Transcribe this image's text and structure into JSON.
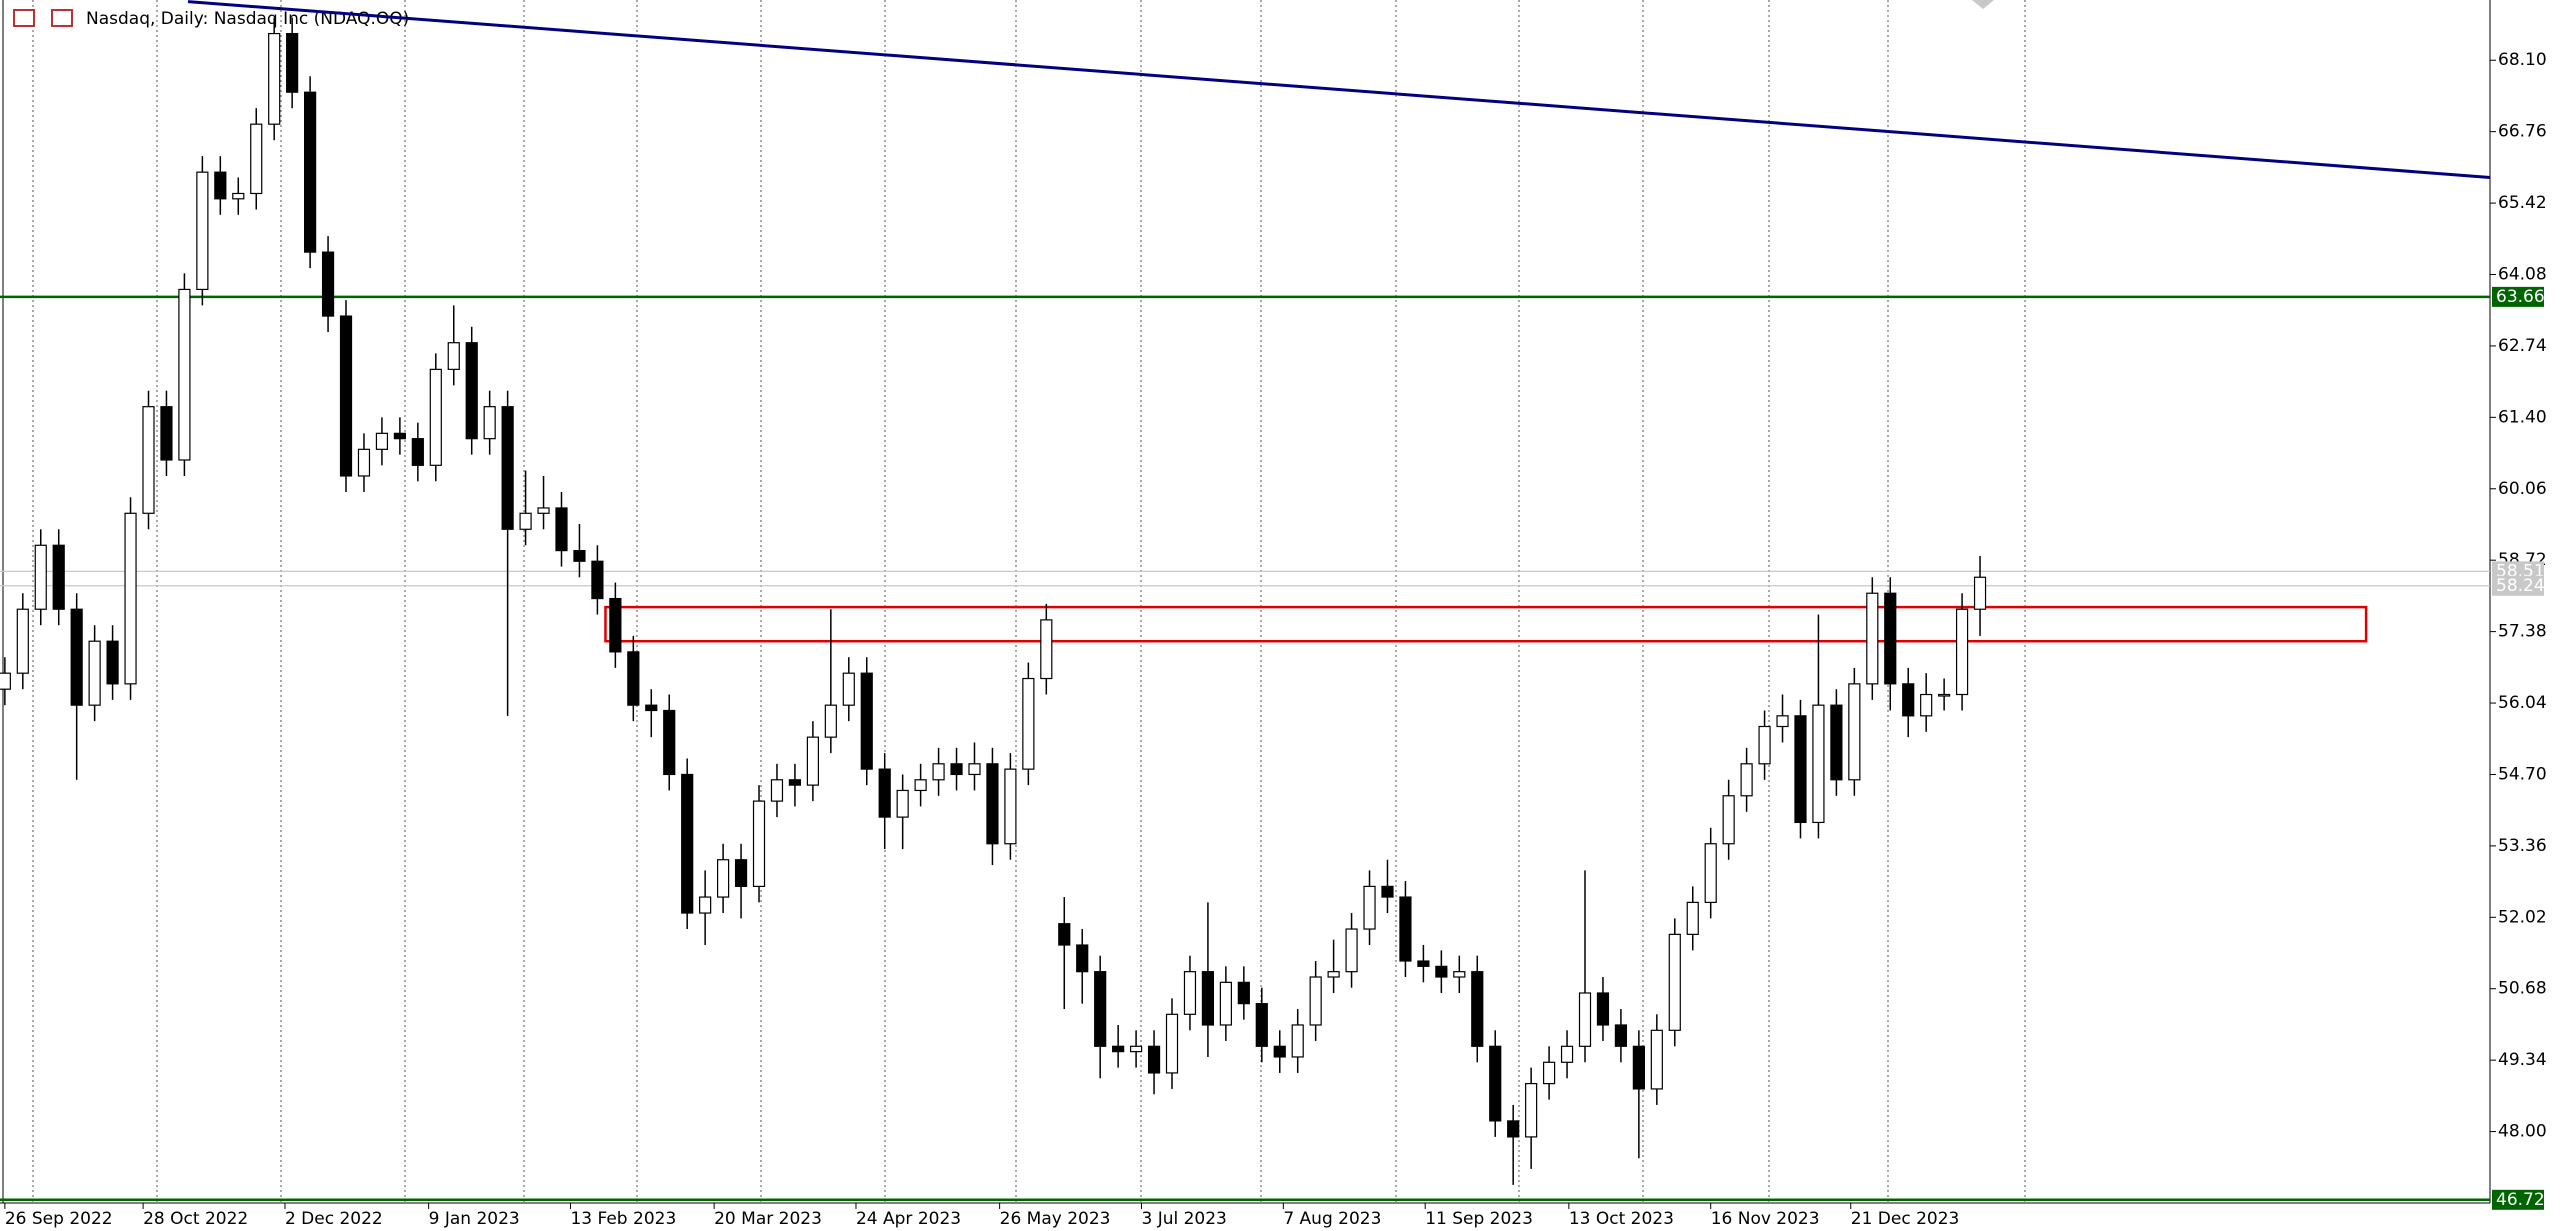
{
  "chart_data": {
    "type": "candlestick",
    "title": "Nasdaq, Daily:  Nasdaq Inc (NDAQ.OQ)",
    "series": [
      {
        "bull_color": "#ffffff",
        "bear_color": "#000000",
        "edge_color": "#000000",
        "open": [
          56.3,
          56.6,
          57.8,
          59.0,
          57.8,
          56.0,
          57.2,
          56.4,
          59.6,
          61.6,
          60.6,
          63.8,
          66.0,
          65.5,
          65.6,
          66.9,
          68.6,
          67.5,
          64.5,
          63.3,
          60.3,
          60.8,
          61.1,
          61.0,
          60.5,
          62.3,
          62.8,
          61.0,
          61.6,
          59.3,
          59.6,
          59.7,
          58.9,
          58.7,
          58.0,
          57.0,
          56.0,
          55.9,
          54.7,
          52.1,
          52.4,
          53.1,
          52.6,
          54.2,
          54.6,
          54.5,
          55.4,
          56.0,
          56.6,
          54.8,
          53.9,
          54.4,
          54.6,
          54.9,
          54.7,
          54.9,
          53.4,
          54.8,
          56.5,
          51.9,
          51.5,
          51.0,
          49.6,
          49.5,
          49.6,
          49.1,
          50.2,
          51.0,
          50.0,
          50.8,
          50.4,
          49.6,
          49.4,
          50.0,
          50.9,
          51.0,
          51.8,
          52.6,
          52.4,
          51.2,
          51.1,
          50.9,
          51.0,
          49.6,
          48.2,
          47.9,
          48.9,
          49.3,
          49.6,
          50.6,
          50.0,
          49.6,
          48.8,
          49.9,
          51.7,
          52.3,
          53.4,
          54.3,
          54.9,
          55.6,
          55.8,
          53.8,
          56.0,
          54.6,
          56.4,
          58.1,
          56.4,
          55.8,
          56.2,
          56.2,
          57.8
        ],
        "high": [
          56.9,
          58.1,
          59.3,
          59.3,
          58.1,
          57.5,
          57.5,
          59.9,
          61.9,
          61.9,
          64.1,
          66.3,
          66.3,
          65.9,
          67.2,
          68.9,
          68.9,
          67.8,
          64.8,
          63.6,
          61.1,
          61.4,
          61.4,
          61.3,
          62.6,
          63.5,
          63.1,
          61.9,
          61.9,
          60.4,
          60.3,
          60.0,
          59.4,
          59.0,
          58.3,
          57.3,
          56.3,
          56.2,
          55.0,
          52.9,
          53.4,
          53.4,
          54.5,
          54.9,
          54.9,
          55.7,
          57.8,
          56.9,
          56.9,
          55.1,
          54.7,
          54.9,
          55.2,
          55.2,
          55.3,
          55.2,
          55.1,
          56.8,
          57.9,
          52.4,
          51.8,
          51.3,
          50.0,
          49.9,
          49.9,
          50.5,
          51.3,
          52.3,
          51.1,
          51.1,
          50.7,
          49.9,
          50.3,
          51.2,
          51.6,
          52.1,
          52.9,
          53.1,
          52.7,
          51.5,
          51.4,
          51.3,
          51.3,
          49.9,
          48.5,
          49.2,
          49.6,
          49.9,
          52.9,
          50.9,
          50.3,
          49.9,
          50.2,
          52.0,
          52.6,
          53.7,
          54.6,
          55.2,
          55.9,
          56.2,
          56.1,
          57.7,
          56.3,
          56.7,
          58.4,
          58.4,
          56.7,
          56.6,
          56.5,
          58.1,
          58.8
        ],
        "low": [
          56.0,
          56.3,
          57.5,
          57.5,
          54.6,
          55.7,
          56.1,
          56.1,
          59.3,
          60.3,
          60.3,
          63.5,
          65.2,
          65.2,
          65.3,
          66.6,
          67.2,
          64.2,
          63.0,
          60.0,
          60.0,
          60.5,
          60.7,
          60.2,
          60.2,
          62.0,
          60.7,
          60.7,
          55.8,
          59.0,
          59.3,
          58.6,
          58.4,
          57.7,
          56.7,
          55.7,
          55.4,
          54.4,
          51.8,
          51.5,
          52.1,
          52.0,
          52.3,
          53.9,
          54.1,
          54.2,
          55.1,
          55.7,
          54.5,
          53.3,
          53.3,
          54.1,
          54.3,
          54.4,
          54.4,
          53.0,
          53.1,
          54.5,
          56.2,
          50.3,
          50.4,
          49.0,
          49.2,
          49.2,
          48.7,
          48.8,
          49.9,
          49.4,
          49.7,
          50.1,
          49.3,
          49.1,
          49.1,
          49.7,
          50.6,
          50.7,
          51.5,
          52.1,
          50.9,
          50.8,
          50.6,
          50.6,
          49.3,
          47.9,
          47.0,
          47.3,
          48.6,
          49.0,
          49.3,
          49.7,
          49.3,
          47.5,
          48.5,
          49.6,
          51.4,
          52.0,
          53.1,
          54.0,
          54.6,
          55.3,
          53.5,
          53.5,
          54.3,
          54.3,
          56.1,
          55.9,
          55.4,
          55.5,
          55.9,
          55.9,
          57.3
        ],
        "close": [
          56.6,
          57.8,
          59.0,
          57.8,
          56.0,
          57.2,
          56.4,
          59.6,
          61.6,
          60.6,
          63.8,
          66.0,
          65.5,
          65.6,
          66.9,
          68.6,
          67.5,
          64.5,
          63.3,
          60.3,
          60.8,
          61.1,
          61.0,
          60.5,
          62.3,
          62.8,
          61.0,
          61.6,
          59.3,
          59.6,
          59.7,
          58.9,
          58.7,
          58.0,
          57.0,
          56.0,
          55.9,
          54.7,
          52.1,
          52.4,
          53.1,
          52.6,
          54.2,
          54.6,
          54.5,
          55.4,
          56.0,
          56.6,
          54.8,
          53.9,
          54.4,
          54.6,
          54.9,
          54.7,
          54.9,
          53.4,
          54.8,
          56.5,
          57.6,
          51.5,
          51.0,
          49.6,
          49.5,
          49.6,
          49.1,
          50.2,
          51.0,
          50.0,
          50.8,
          50.4,
          49.6,
          49.4,
          50.0,
          50.9,
          51.0,
          51.8,
          52.6,
          52.4,
          51.2,
          51.1,
          50.9,
          51.0,
          49.6,
          48.2,
          47.9,
          48.9,
          49.3,
          49.6,
          50.6,
          50.0,
          49.6,
          48.8,
          49.9,
          51.7,
          52.3,
          53.4,
          54.3,
          54.9,
          55.6,
          55.8,
          53.8,
          56.0,
          54.6,
          56.4,
          58.1,
          56.4,
          55.8,
          56.2,
          56.2,
          57.8,
          58.4
        ]
      }
    ],
    "xlim": [
      -0.27,
      138.4
    ],
    "xticks": [
      {
        "value": 0,
        "label": "26 Sep 2022"
      },
      {
        "value": 7.7,
        "label": "28 Oct 2022"
      },
      {
        "value": 15.6,
        "label": "2 Dec 2022"
      },
      {
        "value": 23.6,
        "label": "9 Jan 2023"
      },
      {
        "value": 31.5,
        "label": "13 Feb 2023"
      },
      {
        "value": 39.5,
        "label": "20 Mar 2023"
      },
      {
        "value": 47.4,
        "label": "24 Apr 2023"
      },
      {
        "value": 55.4,
        "label": "26 May 2023"
      },
      {
        "value": 63.3,
        "label": "3 Jul 2023"
      },
      {
        "value": 71.2,
        "label": "7 Aug 2023"
      },
      {
        "value": 79.1,
        "label": "11 Sep 2023"
      },
      {
        "value": 87.1,
        "label": "13 Oct 2023"
      },
      {
        "value": 95,
        "label": "16 Nov 2023"
      },
      {
        "value": 102.8,
        "label": "21 Dec 2023"
      }
    ],
    "ylim": [
      46.66,
      69.23
    ],
    "yticks": [
      {
        "value": 68.1,
        "label": "68.10"
      },
      66.76,
      65.42,
      64.08,
      62.74,
      {
        "value": 61.4,
        "label": "61.40"
      },
      60.06,
      58.72,
      57.38,
      56.04,
      {
        "value": 54.7,
        "label": "54.70"
      },
      53.36,
      52.02,
      50.68,
      49.34,
      {
        "value": 48,
        "label": "48.00"
      }
    ],
    "levels": [
      {
        "value": 63.66,
        "color": "#006400"
      },
      {
        "value": 58.51,
        "color": "#c8c8c8"
      },
      {
        "value": 58.24,
        "color": "#c8c8c8"
      },
      {
        "value": 46.72,
        "color": "#006400"
      }
    ],
    "trendline": {
      "x": [
        10.2,
        138.4
      ],
      "y": [
        69.2,
        65.9
      ],
      "color": "#000080"
    },
    "zone": {
      "x": [
        33.45,
        131.5
      ],
      "y": [
        57.2,
        57.84
      ],
      "color": "#e00000"
    }
  }
}
